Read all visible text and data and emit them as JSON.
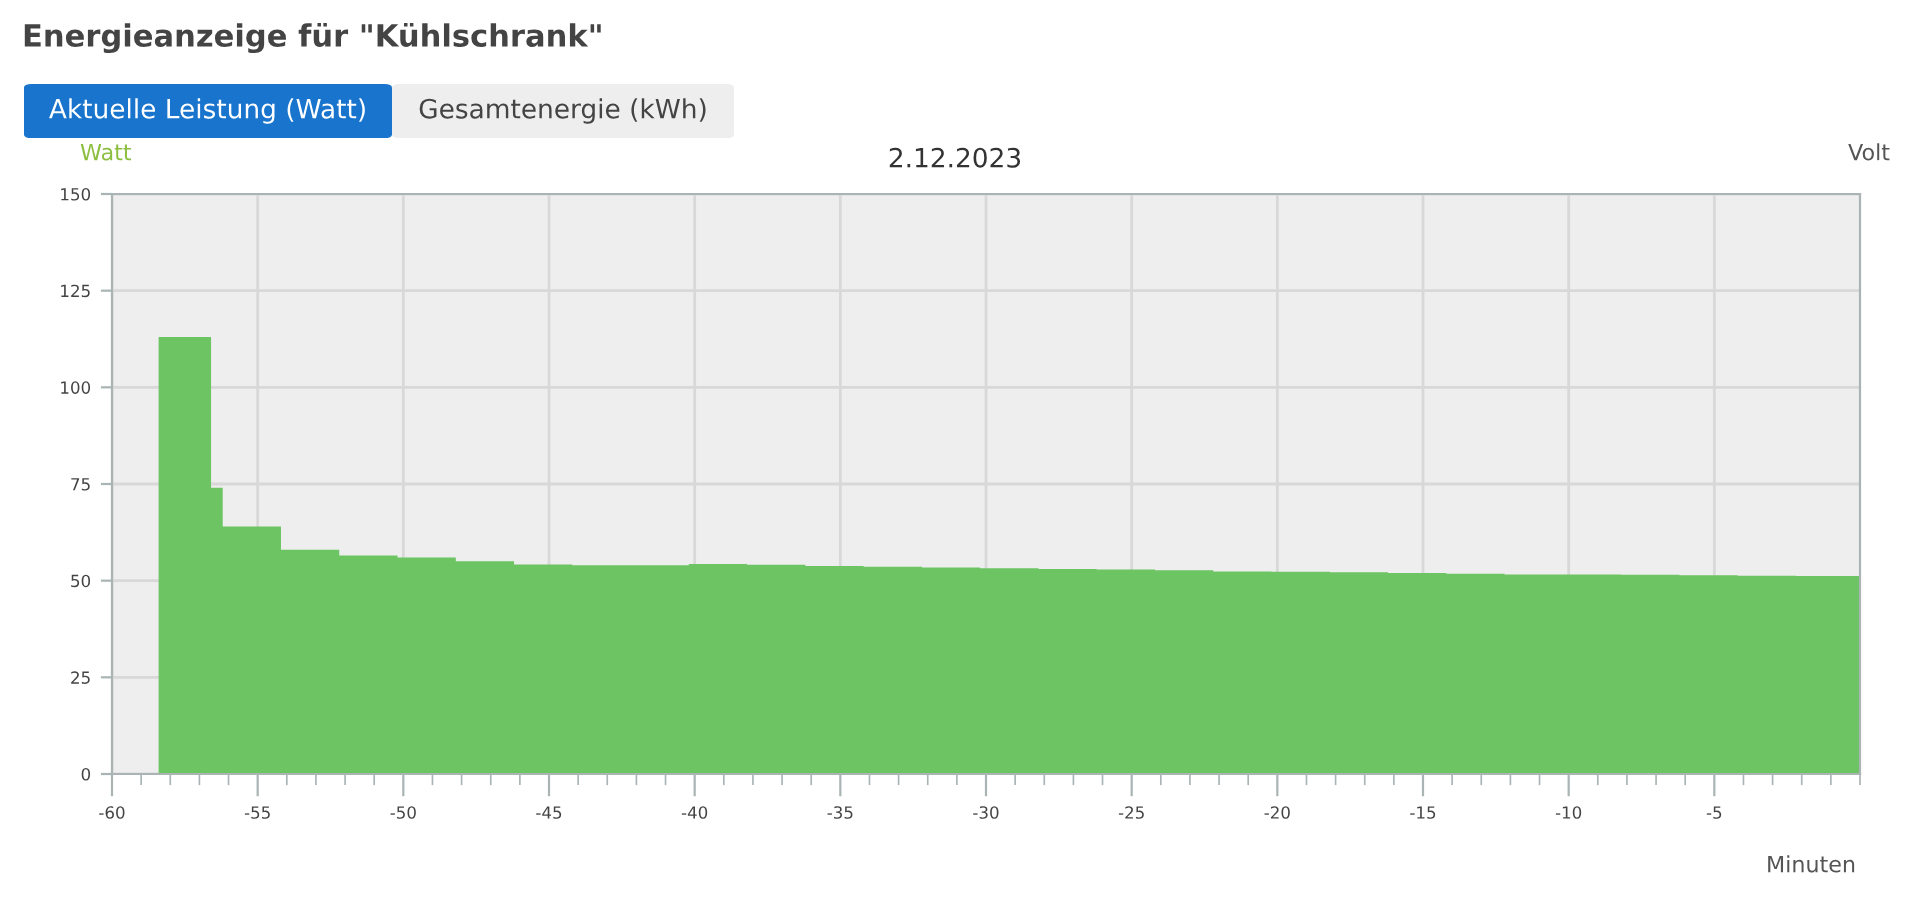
{
  "chart_data": {
    "type": "area",
    "title": "Energieanzeige für \"Kühlschrank\"",
    "subtitle": "2.12.2023",
    "xlabel": "Minuten",
    "ylabel": "Watt",
    "y2label": "Volt",
    "annotations": [
      "Aktuelle Leistung (Watt)",
      "Gesamtenergie (kWh)"
    ],
    "x": [
      -58.4,
      -56.6,
      -56.2,
      -54.2,
      -52.2,
      -50.2,
      -48.2,
      -46.2,
      -44.2,
      -42.2,
      -40.2,
      -38.2,
      -36.2,
      -34.2,
      -32.2,
      -30.2,
      -28.2,
      -26.2,
      -24.2,
      -22.2,
      -20.2,
      -18.2,
      -16.2,
      -14.2,
      -12.2,
      -10.2,
      -8.2,
      -6.2,
      -4.2,
      -2.2,
      0
    ],
    "series": [
      {
        "color": "#6cc462",
        "values": [
          113,
          74,
          64,
          58,
          56.5,
          56,
          55,
          54.2,
          54,
          54,
          54.3,
          54.1,
          53.8,
          53.6,
          53.4,
          53.2,
          53,
          52.9,
          52.7,
          52.4,
          52.3,
          52.2,
          52,
          51.8,
          51.6,
          51.6,
          51.5,
          51.4,
          51.3,
          51.2,
          51.2
        ]
      }
    ],
    "xlim": [
      -60,
      0
    ],
    "xticks": [
      -60,
      -55,
      -50,
      -45,
      -40,
      -35,
      -30,
      -25,
      -20,
      -15,
      -10,
      -5
    ],
    "ylim": [
      0,
      150
    ],
    "yticks": [
      0,
      25,
      50,
      75,
      100,
      125,
      150
    ],
    "grid": true,
    "legend": false
  }
}
